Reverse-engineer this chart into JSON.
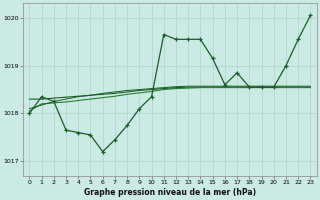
{
  "bg_color": "#cceae4",
  "grid_color": "#aad4cc",
  "line_color_dark": "#1a5c28",
  "line_color_med": "#2a7a38",
  "xlabel": "Graphe pression niveau de la mer (hPa)",
  "xlim": [
    -0.5,
    23.5
  ],
  "ylim": [
    1016.7,
    1020.3
  ],
  "yticks": [
    1017,
    1018,
    1019,
    1020
  ],
  "xticks": [
    0,
    1,
    2,
    3,
    4,
    5,
    6,
    7,
    8,
    9,
    10,
    11,
    12,
    13,
    14,
    15,
    16,
    17,
    18,
    19,
    20,
    21,
    22,
    23
  ],
  "s1_x": [
    0,
    1,
    2,
    3,
    4,
    5,
    6,
    7,
    8,
    9,
    10,
    11,
    12,
    13,
    14,
    15,
    16,
    17,
    18,
    19,
    20,
    21,
    22,
    23
  ],
  "s1_y": [
    1018.0,
    1018.35,
    1018.25,
    1017.65,
    1017.6,
    1017.55,
    1017.2,
    1017.45,
    1017.75,
    1018.1,
    1018.35,
    1019.65,
    1019.55,
    1019.55,
    1019.55,
    1019.15,
    1018.6,
    1018.85,
    1018.55,
    1018.55,
    1018.55,
    1019.0,
    1019.55,
    1020.05
  ],
  "s2_x": [
    0,
    1,
    2,
    3,
    4,
    5,
    6,
    7,
    8,
    9,
    10,
    11,
    12,
    13,
    14,
    15,
    16,
    17,
    18,
    19,
    20,
    21,
    22,
    23
  ],
  "s2_y": [
    1018.3,
    1018.3,
    1018.32,
    1018.34,
    1018.36,
    1018.38,
    1018.4,
    1018.42,
    1018.45,
    1018.48,
    1018.5,
    1018.52,
    1018.54,
    1018.55,
    1018.55,
    1018.55,
    1018.55,
    1018.55,
    1018.55,
    1018.55,
    1018.55,
    1018.55,
    1018.55,
    1018.55
  ],
  "s3_x": [
    0,
    1,
    2,
    3,
    4,
    5,
    6,
    7,
    8,
    9,
    10,
    11,
    12,
    13,
    14,
    15,
    16,
    17,
    18,
    19,
    20,
    21,
    22,
    23
  ],
  "s3_y": [
    1018.05,
    1018.2,
    1018.22,
    1018.24,
    1018.27,
    1018.3,
    1018.33,
    1018.36,
    1018.4,
    1018.43,
    1018.46,
    1018.5,
    1018.52,
    1018.53,
    1018.54,
    1018.54,
    1018.54,
    1018.54,
    1018.54,
    1018.54,
    1018.54,
    1018.54,
    1018.54,
    1018.54
  ],
  "s4_x": [
    0,
    2,
    3,
    4,
    5,
    6,
    7,
    8,
    9,
    10,
    11,
    12,
    13,
    14,
    15,
    16,
    17,
    18,
    19,
    20,
    21,
    22,
    23
  ],
  "s4_y": [
    1018.1,
    1018.25,
    1018.3,
    1018.35,
    1018.38,
    1018.42,
    1018.45,
    1018.48,
    1018.5,
    1018.52,
    1018.54,
    1018.56,
    1018.57,
    1018.57,
    1018.57,
    1018.57,
    1018.57,
    1018.57,
    1018.57,
    1018.57,
    1018.57,
    1018.57,
    1018.57
  ]
}
